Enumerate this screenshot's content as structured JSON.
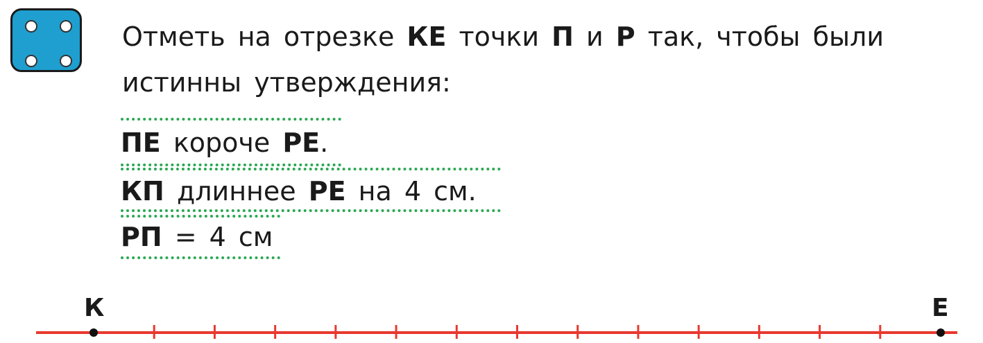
{
  "icon": "dice-four-icon",
  "task": {
    "parts": [
      "Отметь на отрезке ",
      "КЕ",
      " точки ",
      "П",
      " и ",
      "Р",
      " так, чтобы были истинны утверждения:"
    ]
  },
  "statements": [
    {
      "bold1": "ПЕ",
      "text": " короче ",
      "bold2": "РЕ",
      "tail": "."
    },
    {
      "bold1": "КП",
      "text": " длиннее ",
      "bold2": "РЕ",
      "tail": " на 4 см."
    },
    {
      "bold1": "РП",
      "text": " = 4 см",
      "bold2": "",
      "tail": ""
    }
  ],
  "segment": {
    "start_label": "К",
    "end_label": "Е",
    "divisions": 14,
    "color": "#e8392f"
  },
  "colors": {
    "dice": "#1e9fcf",
    "dots": "#2aa852",
    "line": "#e8392f"
  }
}
